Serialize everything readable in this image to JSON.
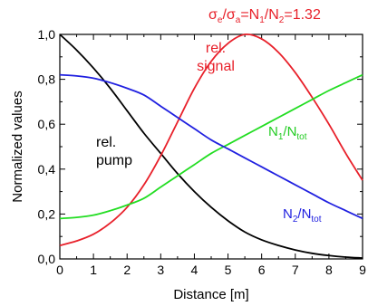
{
  "chart_data": {
    "type": "line",
    "title": "",
    "xlabel": "Distance [m]",
    "ylabel": "Normalized values",
    "xlim": [
      0,
      9
    ],
    "ylim": [
      0.0,
      1.0
    ],
    "xticks": [
      "0",
      "1",
      "2",
      "3",
      "4",
      "5",
      "6",
      "7",
      "8",
      "9"
    ],
    "yticks": [
      "0,0",
      "0,2",
      "0,4",
      "0,6",
      "0,8",
      "1,0"
    ],
    "grid": false,
    "top_label": {
      "ratio_symbol_a": "σ",
      "ratio_sub_a": "e",
      "ratio_sep": "/",
      "ratio_symbol_b": "σ",
      "ratio_sub_b": "a",
      "eq1": "=N",
      "sub1": "1",
      "slash": "/N",
      "sub2": "2",
      "eq2": "=1.32"
    },
    "annotations": {
      "pump_line1": "rel.",
      "pump_line2": "pump",
      "signal_line1": "rel.",
      "signal_line2": "signal",
      "n1_main": "N",
      "n1_sub": "1",
      "n1_mid": "/N",
      "n1_sub2": "tot",
      "n2_main": "N",
      "n2_sub": "2",
      "n2_mid": "/N",
      "n2_sub2": "tot"
    },
    "series": [
      {
        "name": "rel. pump",
        "color": "#000000",
        "x": [
          0,
          0.5,
          1,
          1.5,
          2,
          2.5,
          3,
          3.5,
          4,
          4.5,
          5,
          5.5,
          6,
          6.5,
          7,
          7.5,
          8,
          8.5,
          9
        ],
        "y": [
          1.0,
          0.93,
          0.85,
          0.76,
          0.66,
          0.56,
          0.47,
          0.38,
          0.3,
          0.23,
          0.17,
          0.12,
          0.085,
          0.06,
          0.04,
          0.025,
          0.015,
          0.008,
          0.004
        ]
      },
      {
        "name": "rel. signal",
        "color": "#e8202a",
        "x": [
          0,
          0.5,
          1,
          1.5,
          2,
          2.5,
          3,
          3.5,
          4,
          4.5,
          5,
          5.5,
          6,
          6.5,
          7,
          7.5,
          8,
          8.5,
          9
        ],
        "y": [
          0.06,
          0.08,
          0.11,
          0.16,
          0.23,
          0.33,
          0.46,
          0.61,
          0.76,
          0.88,
          0.96,
          1.0,
          0.98,
          0.92,
          0.83,
          0.72,
          0.6,
          0.47,
          0.35
        ]
      },
      {
        "name": "N1/Ntot",
        "color": "#22dd22",
        "x": [
          0,
          0.5,
          1,
          1.5,
          2,
          2.5,
          3,
          3.5,
          4,
          4.5,
          5,
          5.5,
          6,
          6.5,
          7,
          7.5,
          8,
          8.5,
          9
        ],
        "y": [
          0.18,
          0.185,
          0.195,
          0.215,
          0.24,
          0.27,
          0.32,
          0.37,
          0.42,
          0.47,
          0.51,
          0.55,
          0.59,
          0.63,
          0.67,
          0.71,
          0.75,
          0.785,
          0.82
        ]
      },
      {
        "name": "N2/Ntot",
        "color": "#2020e0",
        "x": [
          0,
          0.5,
          1,
          1.5,
          2,
          2.5,
          3,
          3.5,
          4,
          4.5,
          5,
          5.5,
          6,
          6.5,
          7,
          7.5,
          8,
          8.5,
          9
        ],
        "y": [
          0.82,
          0.815,
          0.805,
          0.785,
          0.76,
          0.73,
          0.68,
          0.63,
          0.58,
          0.53,
          0.49,
          0.45,
          0.41,
          0.37,
          0.33,
          0.29,
          0.25,
          0.215,
          0.18
        ]
      }
    ]
  }
}
